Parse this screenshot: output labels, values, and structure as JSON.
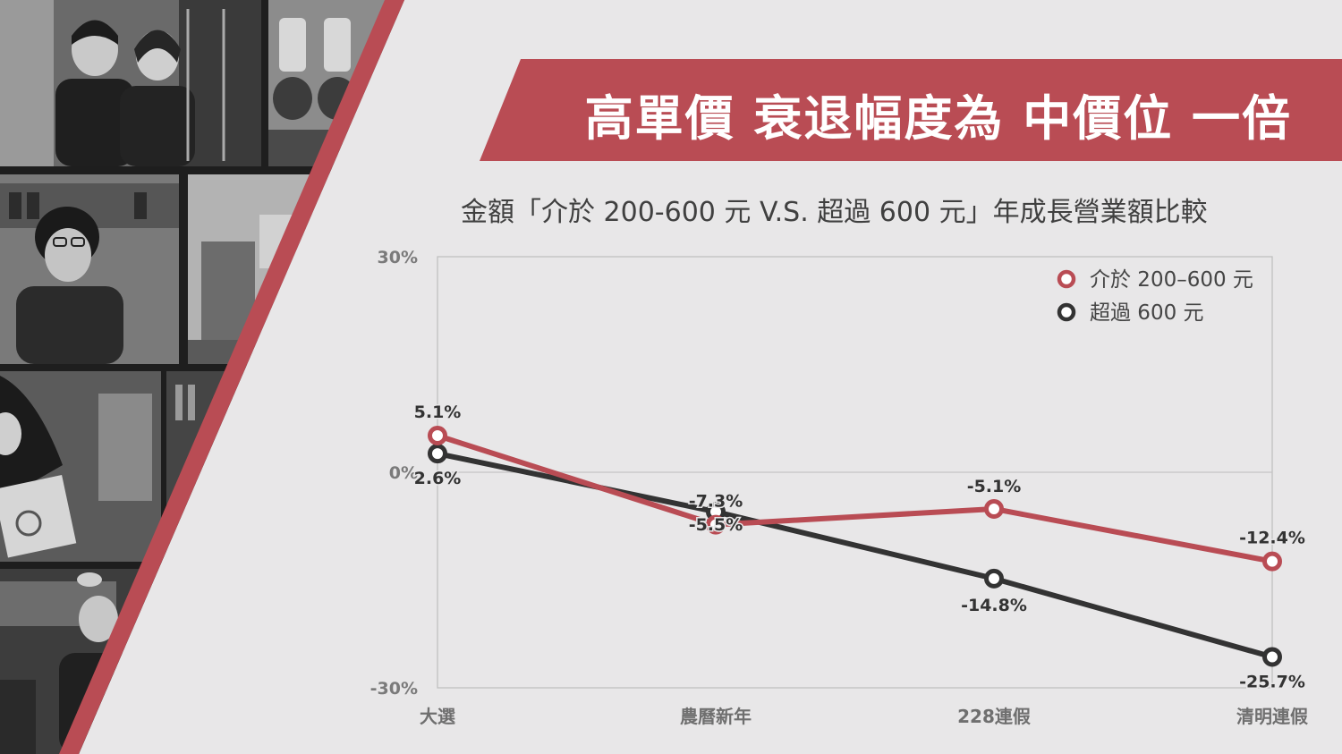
{
  "headline": "高單價 衰退幅度為 中價位 一倍",
  "colors": {
    "accent": "#b94c54",
    "dark": "#333333",
    "background": "#e8e7e8"
  },
  "chart_data": {
    "type": "line",
    "title": "金額「介於 200-600 元 V.S. 超過 600 元」年成長營業額比較",
    "categories": [
      "大選",
      "農曆新年",
      "228連假",
      "清明連假"
    ],
    "ylim": [
      -30,
      30
    ],
    "yticks": [
      {
        "value": 30,
        "label": "30%"
      },
      {
        "value": 0,
        "label": "0%"
      },
      {
        "value": -30,
        "label": "-30%"
      }
    ],
    "grid": "zero-line",
    "legend": "top-right",
    "series": [
      {
        "name": "介於 200–600 元",
        "color": "#b94c54",
        "values": [
          5.1,
          -7.3,
          -5.1,
          -12.4
        ],
        "labels": [
          "5.1%",
          "-7.3%",
          "-5.1%",
          "-12.4%"
        ]
      },
      {
        "name": "超過 600 元",
        "color": "#333333",
        "values": [
          2.6,
          -5.5,
          -14.8,
          -25.7
        ],
        "labels": [
          "2.6%",
          "-5.5%",
          "-14.8%",
          "-25.7%"
        ]
      }
    ]
  }
}
